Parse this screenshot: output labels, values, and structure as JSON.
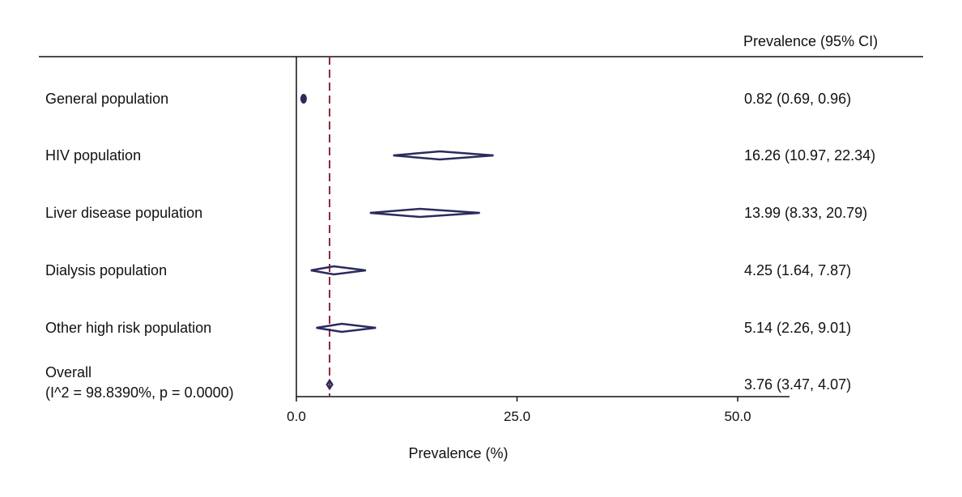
{
  "chart_data": {
    "type": "forest",
    "header_right": "Prevalence (95% CI)",
    "xlabel": "Prevalence (%)",
    "xlim": [
      0,
      55
    ],
    "xticks": [
      0,
      25,
      50
    ],
    "xtick_labels": [
      "0.0",
      "25.0",
      "50.0"
    ],
    "reference_line": 3.76,
    "rows": [
      {
        "label": "General population",
        "label2": "",
        "estimate": 0.82,
        "lower": 0.69,
        "upper": 0.96,
        "ci_text": "0.82 (0.69, 0.96)"
      },
      {
        "label": "HIV population",
        "label2": "",
        "estimate": 16.26,
        "lower": 10.97,
        "upper": 22.34,
        "ci_text": "16.26 (10.97, 22.34)"
      },
      {
        "label": "Liver disease population",
        "label2": "",
        "estimate": 13.99,
        "lower": 8.33,
        "upper": 20.79,
        "ci_text": "13.99 (8.33, 20.79)"
      },
      {
        "label": "Dialysis population",
        "label2": "",
        "estimate": 4.25,
        "lower": 1.64,
        "upper": 7.87,
        "ci_text": "4.25 (1.64, 7.87)"
      },
      {
        "label": "Other high risk population",
        "label2": "",
        "estimate": 5.14,
        "lower": 2.26,
        "upper": 9.01,
        "ci_text": "5.14 (2.26, 9.01)"
      },
      {
        "label": "Overall",
        "label2": "(I^2 = 98.8390%, p = 0.0000)",
        "estimate": 3.76,
        "lower": 3.47,
        "upper": 4.07,
        "ci_text": "3.76 (3.47, 4.07)"
      }
    ],
    "colors": {
      "marker": "#2b2a5e",
      "reference": "#8b2a3a",
      "axis": "#111111"
    }
  }
}
